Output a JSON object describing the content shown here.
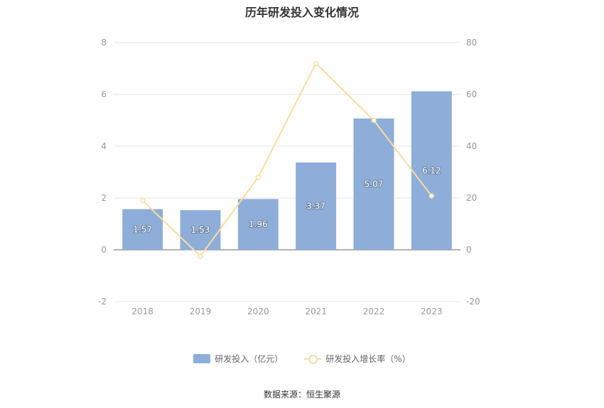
{
  "chart_data": {
    "title": "历年研发投入变化情况",
    "type": "bar",
    "categories": [
      "2018",
      "2019",
      "2020",
      "2021",
      "2022",
      "2023"
    ],
    "series": [
      {
        "name": "研发投入（亿元）",
        "type": "bar",
        "axis": "left",
        "values": [
          1.57,
          1.53,
          1.96,
          3.37,
          5.07,
          6.12
        ],
        "color": "#8eaed9"
      },
      {
        "name": "研发投入增长率（%）",
        "type": "line",
        "axis": "right",
        "values": [
          19,
          -2.5,
          28,
          72,
          50,
          20.8
        ],
        "color": "#f9dca0"
      }
    ],
    "y_left": {
      "min": -2,
      "max": 8,
      "ticks": [
        "8",
        "6",
        "4",
        "2",
        "0",
        "-2"
      ]
    },
    "y_right": {
      "min": -20,
      "max": 80,
      "ticks": [
        "80",
        "60",
        "40",
        "20",
        "0",
        "-20"
      ]
    },
    "grid": true,
    "legend_position": "bottom"
  },
  "source": "数据来源：恒生聚源"
}
